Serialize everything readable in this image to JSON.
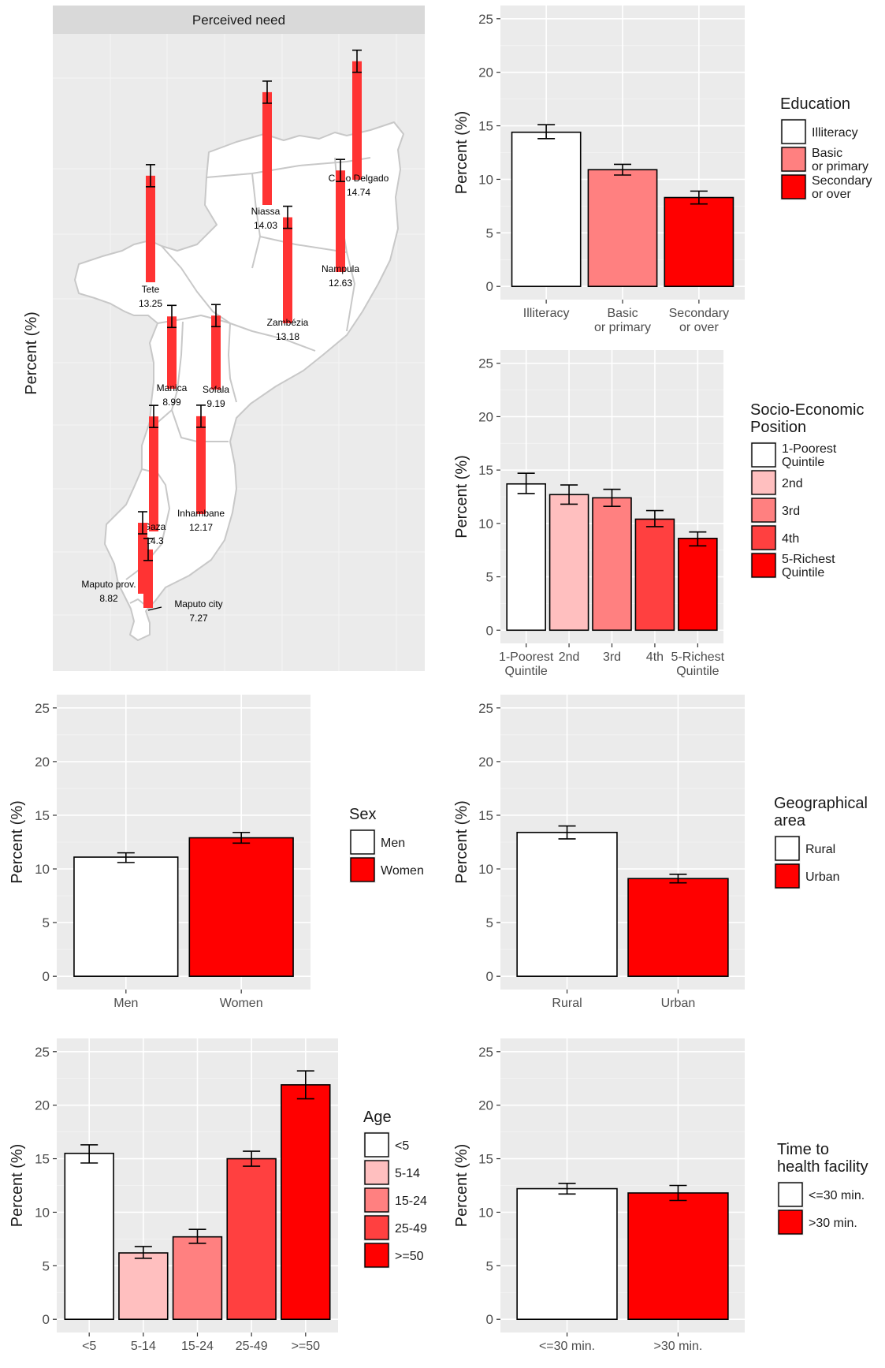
{
  "chart_data": [
    {
      "type": "map",
      "strip_title": "Perceived need",
      "ylabel": "Percent (%)",
      "provinces": [
        {
          "name": "Cabo Delgado",
          "value": 14.74
        },
        {
          "name": "Niassa",
          "value": 14.03
        },
        {
          "name": "Nampula",
          "value": 12.63
        },
        {
          "name": "Tete",
          "value": 13.25
        },
        {
          "name": "Zambézia",
          "value": 13.18
        },
        {
          "name": "Manica",
          "value": 8.99
        },
        {
          "name": "Sofala",
          "value": 9.19
        },
        {
          "name": "Inhambane",
          "value": 12.17
        },
        {
          "name": "Gaza",
          "value": 14.3
        },
        {
          "name": "Maputo prov.",
          "value": 8.82
        },
        {
          "name": "Maputo city",
          "value": 7.27
        }
      ]
    },
    {
      "type": "bar",
      "legend_title": "Education",
      "ylabel": "Percent (%)",
      "ylim": [
        0,
        25
      ],
      "yticks": [
        0,
        5,
        10,
        15,
        20,
        25
      ],
      "categories": [
        "Illiteracy",
        "Basic\nor primary",
        "Secondary\nor over"
      ],
      "legend_labels": [
        "Illiteracy",
        "Basic\nor primary",
        "Secondary\nor over"
      ],
      "values": [
        14.4,
        10.9,
        8.3
      ],
      "err_low": [
        13.8,
        10.4,
        7.7
      ],
      "err_high": [
        15.1,
        11.4,
        8.9
      ],
      "colors": [
        "#ffffff",
        "#ff8080",
        "#ff0000"
      ]
    },
    {
      "type": "bar",
      "legend_title": "Socio-Economic\nPosition",
      "ylabel": "Percent (%)",
      "ylim": [
        0,
        25
      ],
      "yticks": [
        0,
        5,
        10,
        15,
        20,
        25
      ],
      "categories": [
        "1-Poorest\nQuintile",
        "2nd",
        "3rd",
        "4th",
        "5-Richest\nQuintile"
      ],
      "legend_labels": [
        "1-Poorest\nQuintile",
        "2nd",
        "3rd",
        "4th",
        "5-Richest\nQuintile"
      ],
      "values": [
        13.7,
        12.7,
        12.4,
        10.4,
        8.6
      ],
      "err_low": [
        12.8,
        11.8,
        11.6,
        9.7,
        7.9
      ],
      "err_high": [
        14.7,
        13.6,
        13.2,
        11.2,
        9.2
      ],
      "colors": [
        "#ffffff",
        "#ffbfbf",
        "#ff8080",
        "#ff4040",
        "#ff0000"
      ]
    },
    {
      "type": "bar",
      "legend_title": "Sex",
      "ylabel": "Percent (%)",
      "ylim": [
        0,
        25
      ],
      "yticks": [
        0,
        5,
        10,
        15,
        20,
        25
      ],
      "categories": [
        "Men",
        "Women"
      ],
      "legend_labels": [
        "Men",
        "Women"
      ],
      "values": [
        11.1,
        12.9
      ],
      "err_low": [
        10.6,
        12.4
      ],
      "err_high": [
        11.5,
        13.4
      ],
      "colors": [
        "#ffffff",
        "#ff0000"
      ]
    },
    {
      "type": "bar",
      "legend_title": "Geographical\narea",
      "ylabel": "Percent (%)",
      "ylim": [
        0,
        25
      ],
      "yticks": [
        0,
        5,
        10,
        15,
        20,
        25
      ],
      "categories": [
        "Rural",
        "Urban"
      ],
      "legend_labels": [
        "Rural",
        "Urban"
      ],
      "values": [
        13.4,
        9.1
      ],
      "err_low": [
        12.8,
        8.7
      ],
      "err_high": [
        14.0,
        9.5
      ],
      "colors": [
        "#ffffff",
        "#ff0000"
      ]
    },
    {
      "type": "bar",
      "legend_title": "Age",
      "ylabel": "Percent (%)",
      "ylim": [
        0,
        25
      ],
      "yticks": [
        0,
        5,
        10,
        15,
        20,
        25
      ],
      "categories": [
        "<5",
        "5-14",
        "15-24",
        "25-49",
        ">=50"
      ],
      "legend_labels": [
        "<5",
        "5-14",
        "15-24",
        "25-49",
        ">=50"
      ],
      "values": [
        15.5,
        6.2,
        7.7,
        15.0,
        21.9
      ],
      "err_low": [
        14.6,
        5.7,
        7.1,
        14.3,
        20.6
      ],
      "err_high": [
        16.3,
        6.8,
        8.4,
        15.7,
        23.2
      ],
      "colors": [
        "#ffffff",
        "#ffbfbf",
        "#ff8080",
        "#ff4040",
        "#ff0000"
      ]
    },
    {
      "type": "bar",
      "legend_title": "Time to\nhealth facility",
      "ylabel": "Percent (%)",
      "ylim": [
        0,
        25
      ],
      "yticks": [
        0,
        5,
        10,
        15,
        20,
        25
      ],
      "categories": [
        "<=30 min.",
        ">30 min."
      ],
      "legend_labels": [
        "<=30 min.",
        ">30 min."
      ],
      "values": [
        12.2,
        11.8
      ],
      "err_low": [
        11.7,
        11.1
      ],
      "err_high": [
        12.7,
        12.5
      ],
      "colors": [
        "#ffffff",
        "#ff0000"
      ]
    }
  ]
}
